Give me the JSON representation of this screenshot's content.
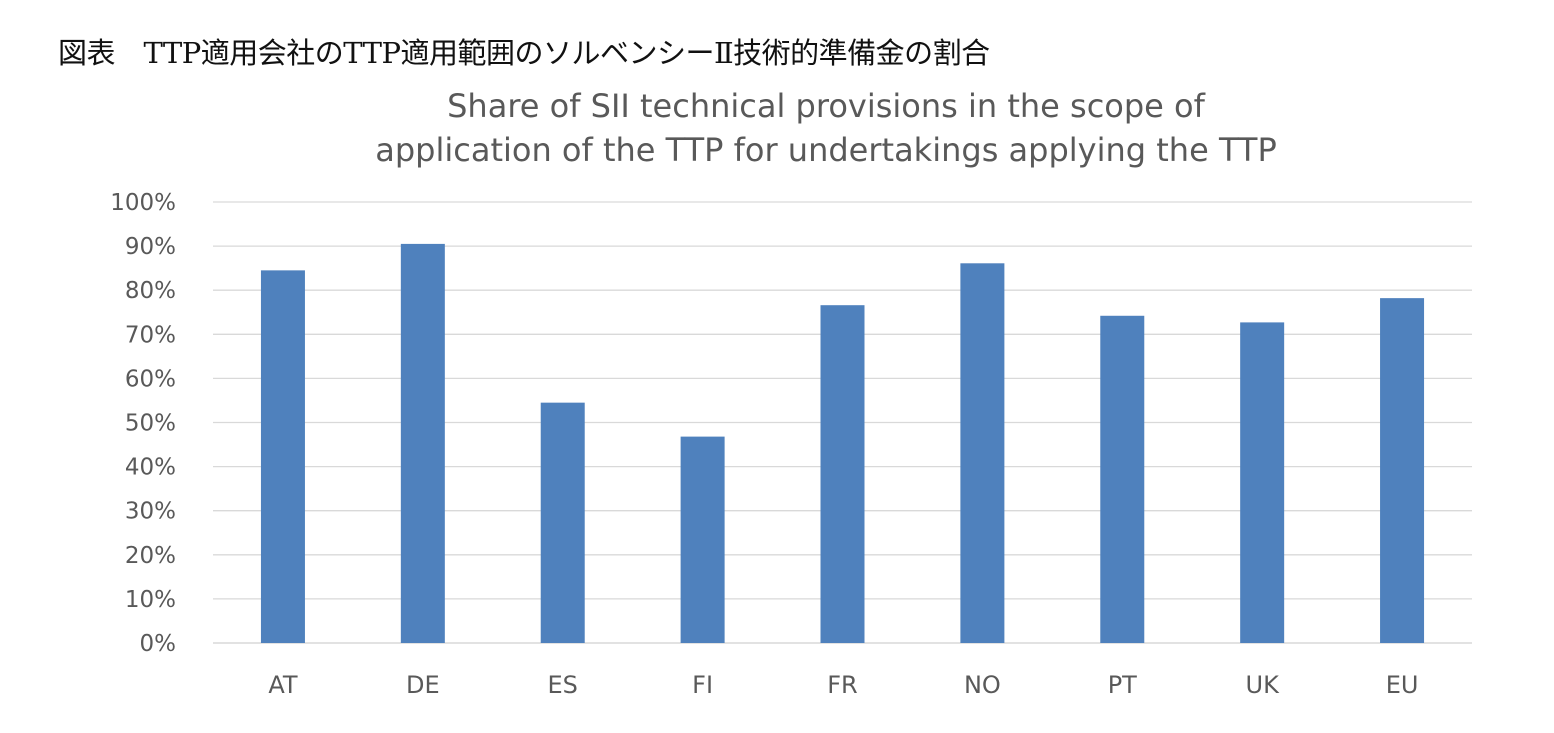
{
  "caption": "図表　TTP適用会社のTTP適用範囲のソルベンシーⅡ技術的準備金の割合",
  "chart_data": {
    "type": "bar",
    "title_lines": [
      "Share of SII technical provisions in the scope of",
      "application of the TTP for undertakings applying the TTP"
    ],
    "categories": [
      "AT",
      "DE",
      "ES",
      "FI",
      "FR",
      "NO",
      "PT",
      "UK",
      "EU"
    ],
    "values": [
      84.5,
      90.5,
      54.5,
      46.8,
      76.6,
      86.1,
      74.2,
      72.7,
      78.2
    ],
    "ylim": [
      0,
      100
    ],
    "yticks": [
      "0%",
      "10%",
      "20%",
      "30%",
      "40%",
      "50%",
      "60%",
      "70%",
      "80%",
      "90%",
      "100%"
    ],
    "grid": true,
    "legend": "none",
    "bar_color": "#4f81bd"
  }
}
